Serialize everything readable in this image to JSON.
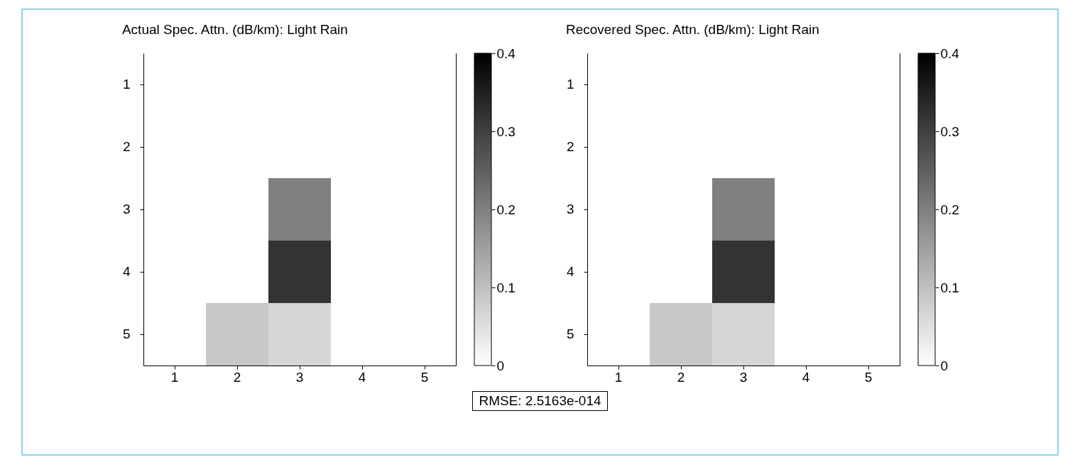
{
  "chart_data": [
    {
      "type": "heatmap",
      "title": "Actual Spec. Attn. (dB/km): Light Rain",
      "categories": [
        "1",
        "2",
        "3",
        "4",
        "5"
      ],
      "y_categories": [
        "1",
        "2",
        "3",
        "4",
        "5"
      ],
      "cells": [
        [
          0,
          0,
          0,
          0,
          0
        ],
        [
          0,
          0,
          0,
          0,
          0
        ],
        [
          0,
          0,
          0.2,
          0,
          0
        ],
        [
          0,
          0,
          0.32,
          0,
          0
        ],
        [
          0,
          0.086,
          0.064,
          0,
          0
        ]
      ],
      "clim": [
        0,
        0.4
      ],
      "cticks": [
        0,
        0.1,
        0.2,
        0.3,
        0.4
      ],
      "annotations": [
        "RMSE: 2.5163e-014"
      ]
    },
    {
      "type": "heatmap",
      "title": "Recovered Spec. Attn. (dB/km): Light Rain",
      "categories": [
        "1",
        "2",
        "3",
        "4",
        "5"
      ],
      "y_categories": [
        "1",
        "2",
        "3",
        "4",
        "5"
      ],
      "cells": [
        [
          0,
          0,
          0,
          0,
          0
        ],
        [
          0,
          0,
          0,
          0,
          0
        ],
        [
          0,
          0,
          0.2,
          0,
          0
        ],
        [
          0,
          0,
          0.32,
          0,
          0
        ],
        [
          0,
          0.086,
          0.064,
          0,
          0
        ]
      ],
      "clim": [
        0,
        0.4
      ],
      "cticks": [
        0,
        0.1,
        0.2,
        0.3,
        0.4
      ]
    }
  ]
}
